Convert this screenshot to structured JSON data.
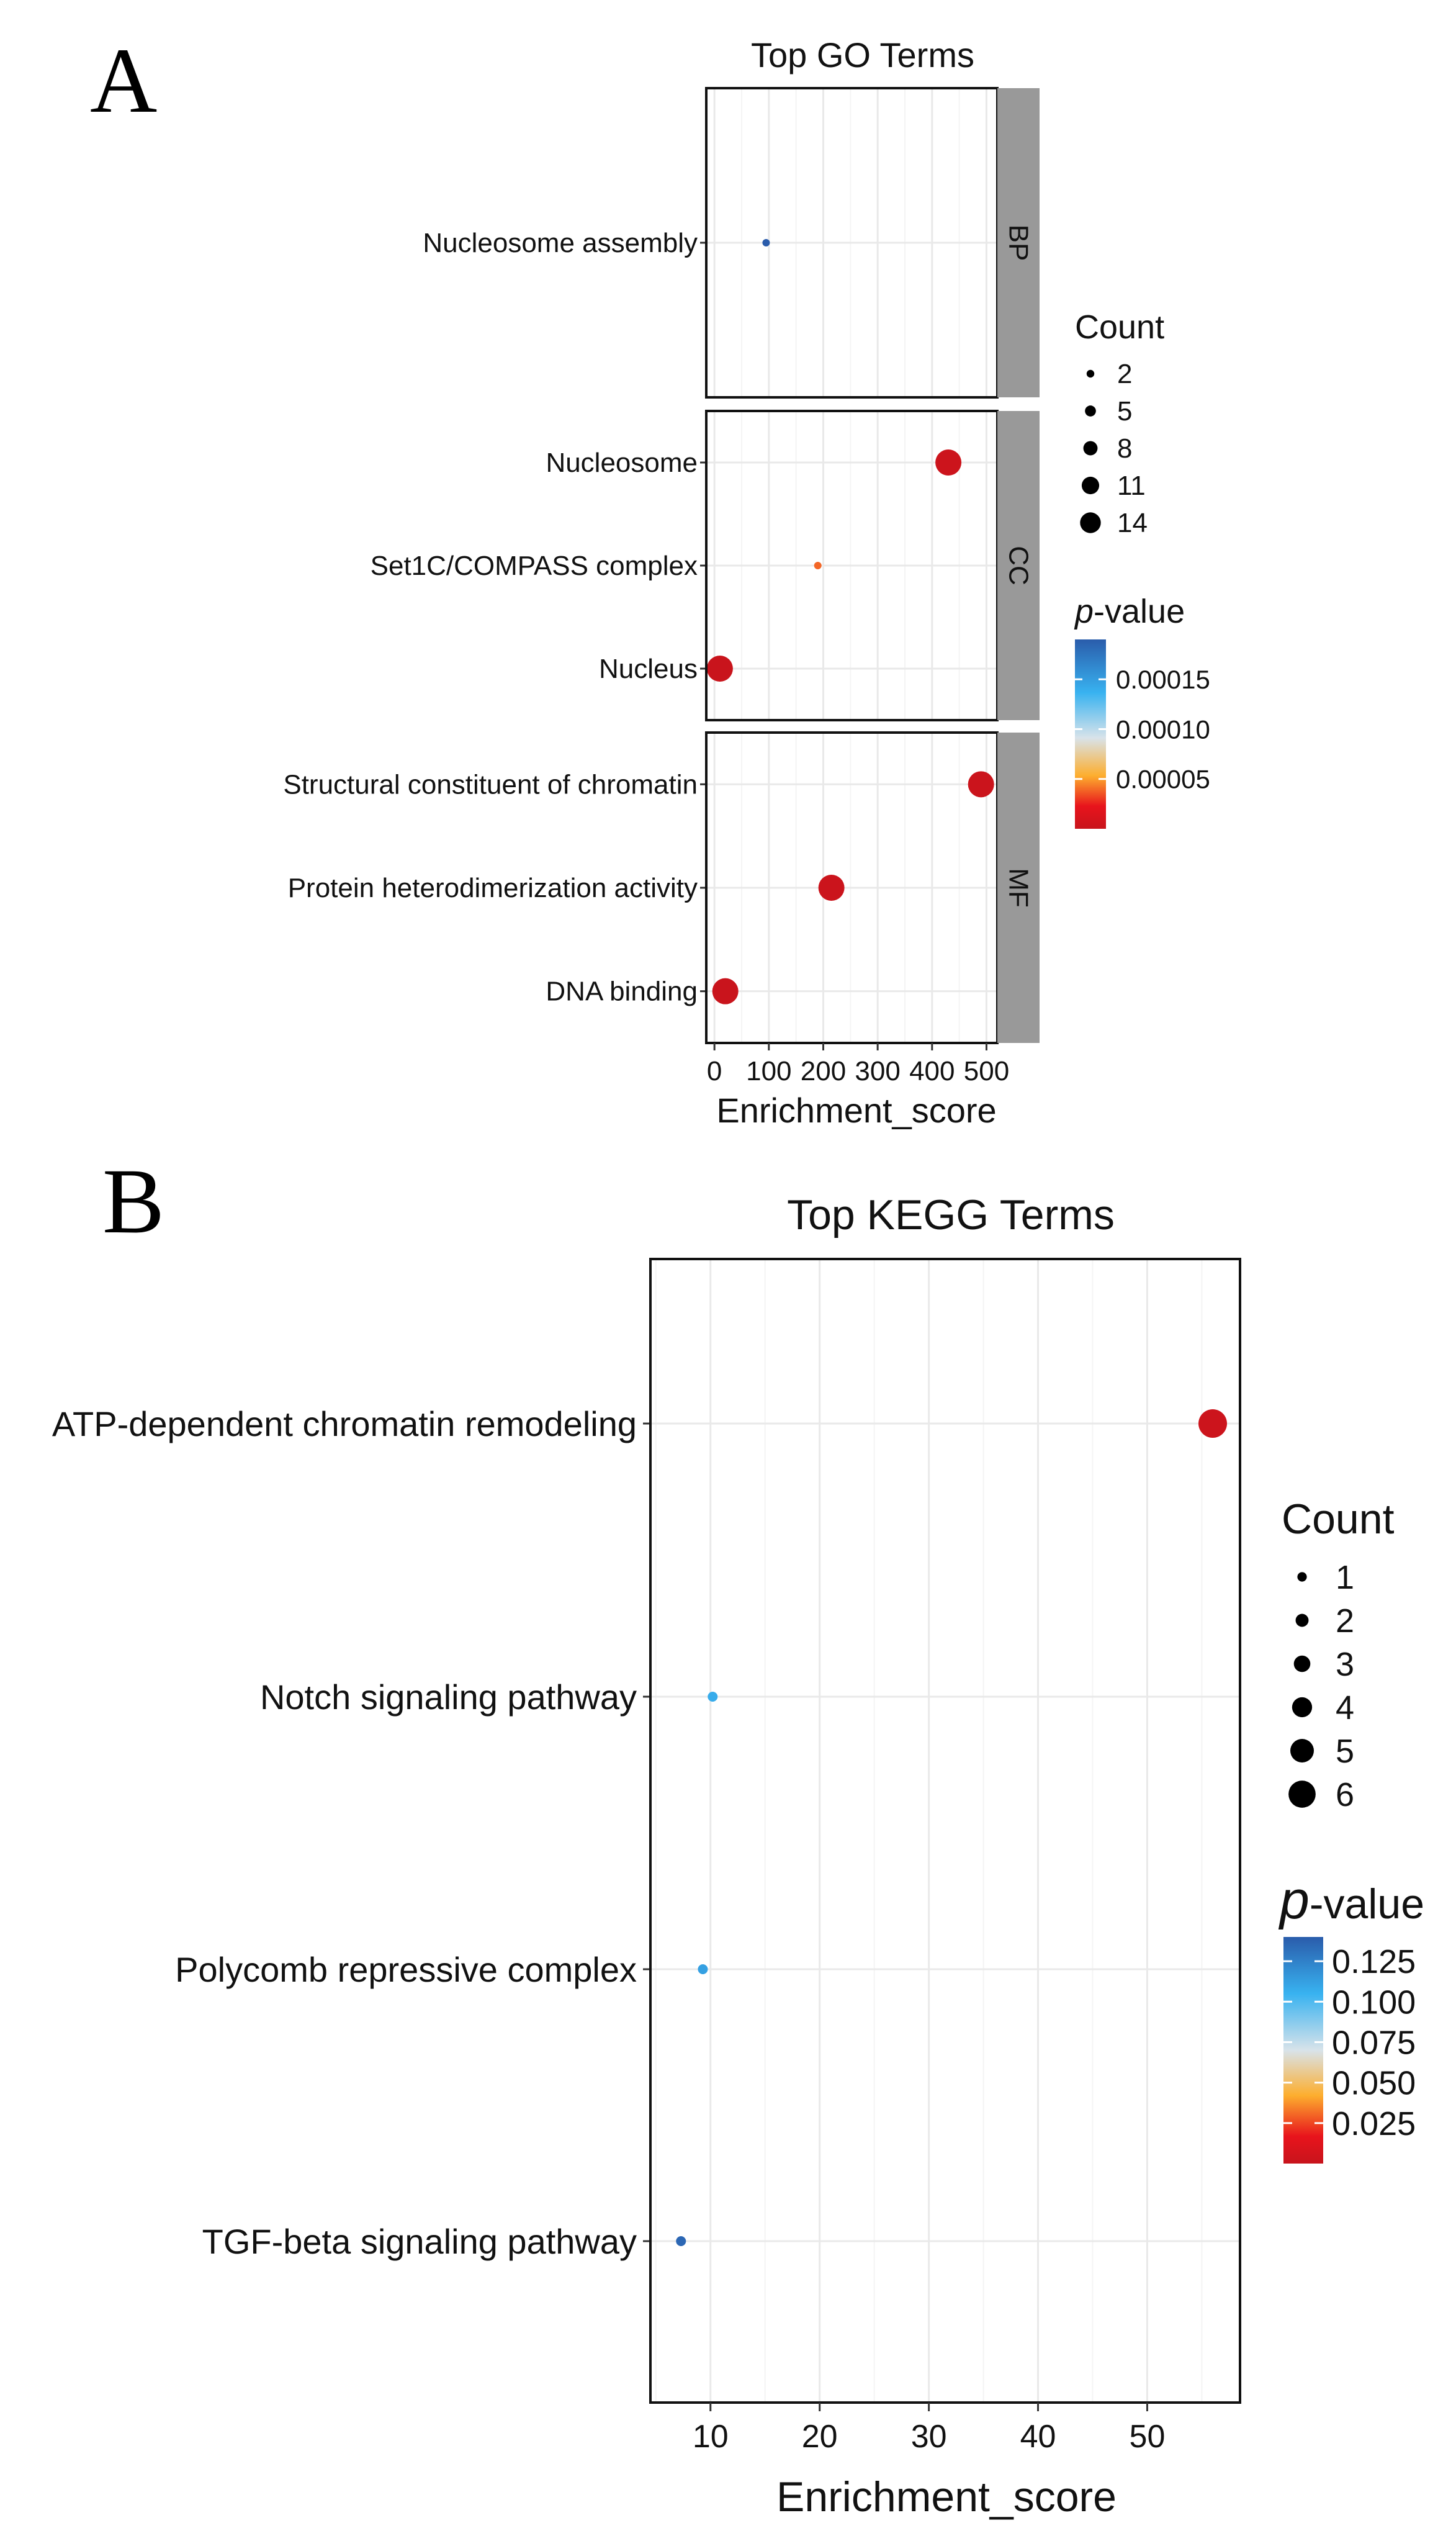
{
  "panels": {
    "a_letter": "A",
    "b_letter": "B"
  },
  "chart_data": [
    {
      "type": "scatter",
      "title": "Top GO Terms",
      "xlabel": "Enrichment_score",
      "ylabel": "",
      "xlim": [
        -15,
        520
      ],
      "xticks": [
        0,
        100,
        200,
        300,
        400,
        500
      ],
      "facets": [
        {
          "name": "BP",
          "terms": [
            {
              "term": "Nucleosome assembly",
              "score": 95,
              "count": 2,
              "p": 0.00019
            }
          ]
        },
        {
          "name": "CC",
          "terms": [
            {
              "term": "Nucleosome",
              "score": 430,
              "count": 14,
              "p": 3e-06
            },
            {
              "term": "Set1C/COMPASS complex",
              "score": 190,
              "count": 2,
              "p": 4e-05
            },
            {
              "term": "Nucleus",
              "score": 10,
              "count": 14,
              "p": 1e-06
            }
          ]
        },
        {
          "name": "MF",
          "terms": [
            {
              "term": "Structural constituent of chromatin",
              "score": 490,
              "count": 14,
              "p": 2e-06
            },
            {
              "term": "Protein heterodimerization activity",
              "score": 215,
              "count": 14,
              "p": 2e-06
            },
            {
              "term": "DNA binding",
              "score": 20,
              "count": 14,
              "p": 1e-06
            }
          ]
        }
      ],
      "legend": {
        "size_title": "Count",
        "size_values": [
          2,
          5,
          8,
          11,
          14
        ],
        "color_title_italic": "p",
        "color_title_rest": "-value",
        "color_ticks": [
          5e-05,
          0.0001,
          0.00015
        ],
        "color_tick_labels": [
          "0.00005",
          "0.00010",
          "0.00015"
        ],
        "color_range": [
          0.0,
          0.00019
        ]
      }
    },
    {
      "type": "scatter",
      "title": "Top KEGG Terms",
      "xlabel": "Enrichment_score",
      "ylabel": "",
      "xlim": [
        4.5,
        58.5
      ],
      "xticks": [
        10,
        20,
        30,
        40,
        50
      ],
      "terms": [
        {
          "term": "ATP-dependent chromatin remodeling",
          "score": 56,
          "count": 6,
          "p": 0.002
        },
        {
          "term": "Notch signaling pathway",
          "score": 10.2,
          "count": 1,
          "p": 0.105
        },
        {
          "term": "Polycomb repressive complex",
          "score": 9.3,
          "count": 1,
          "p": 0.11
        },
        {
          "term": "TGF-beta signaling pathway",
          "score": 7.3,
          "count": 1,
          "p": 0.135
        }
      ],
      "legend": {
        "size_title": "Count",
        "size_values": [
          1,
          2,
          3,
          4,
          5,
          6
        ],
        "color_title_italic": "p",
        "color_title_rest": "-value",
        "color_ticks": [
          0.025,
          0.05,
          0.075,
          0.1,
          0.125
        ],
        "color_tick_labels": [
          "0.025",
          "0.050",
          "0.075",
          "0.100",
          "0.125"
        ],
        "color_range": [
          0.0,
          0.14
        ]
      }
    }
  ],
  "colors": {
    "scale_low": "#b2182b",
    "scale_mid_low": "#e8141c",
    "scale_orange": "#fdae2e",
    "scale_mid": "#d8e3ea",
    "scale_light_blue": "#38b2f0",
    "scale_high": "#2a5cab",
    "strip": "#999999",
    "grid": "#ebebeb"
  }
}
